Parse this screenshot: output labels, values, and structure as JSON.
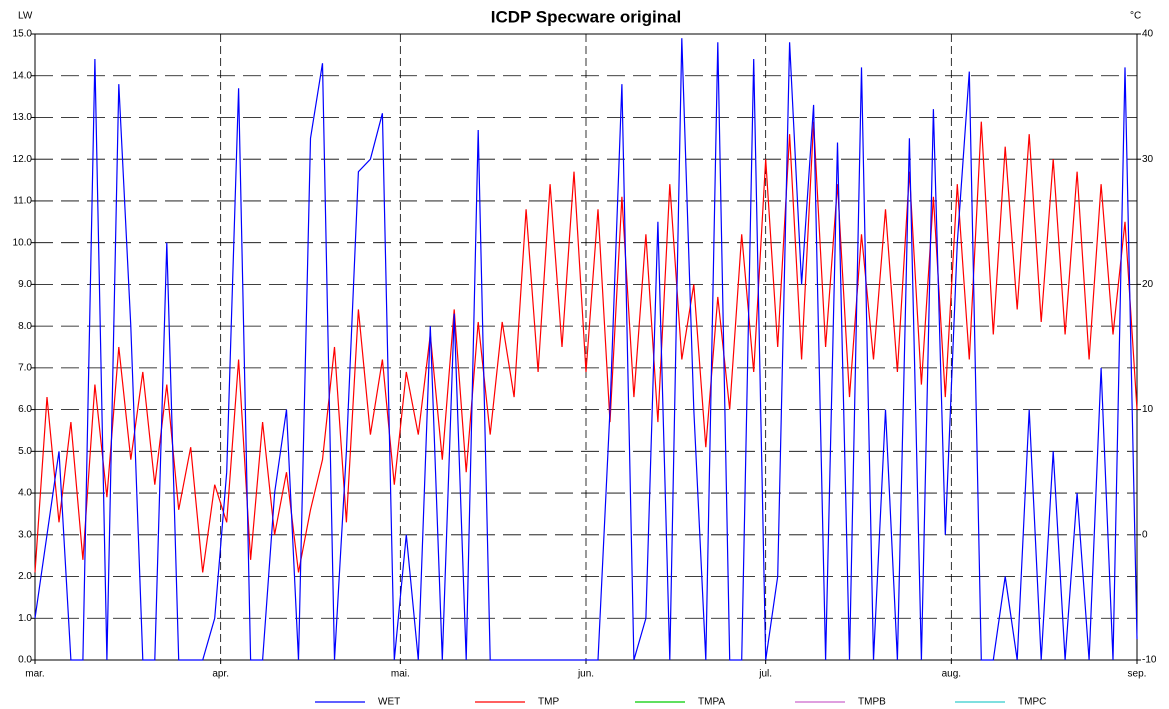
{
  "chart_data": {
    "type": "line",
    "title": "ICDP Specware original",
    "ylabel": "LW",
    "y2label": "°C",
    "x": [
      0,
      2,
      4,
      6,
      8,
      10,
      12,
      14,
      16,
      18,
      20,
      22,
      24,
      26,
      28,
      30,
      32,
      34,
      36,
      38,
      40,
      42,
      44,
      46,
      48,
      50,
      52,
      54,
      56,
      58,
      60,
      62,
      64,
      66,
      68,
      70,
      72,
      74,
      76,
      78,
      80,
      82,
      84,
      86,
      88,
      90,
      92,
      94,
      96,
      98,
      100,
      102,
      104,
      106,
      108,
      110,
      112,
      114,
      116,
      118,
      120,
      122,
      124,
      126,
      128,
      130,
      132,
      134,
      136,
      138,
      140,
      142,
      144,
      146,
      148,
      150,
      152,
      154,
      156,
      158,
      160,
      162,
      164,
      166,
      168,
      170,
      172,
      174,
      176,
      178,
      180,
      182,
      184
    ],
    "xlim": [
      0,
      184
    ],
    "xticks": [
      {
        "value": 0,
        "label": "mar."
      },
      {
        "value": 31,
        "label": "apr."
      },
      {
        "value": 61,
        "label": "mai."
      },
      {
        "value": 92,
        "label": "jun."
      },
      {
        "value": 122,
        "label": "jul."
      },
      {
        "value": 153,
        "label": "aug."
      },
      {
        "value": 184,
        "label": "sep."
      }
    ],
    "ylim": [
      0,
      15
    ],
    "yticks": [
      {
        "value": 0,
        "label": "0.0"
      },
      {
        "value": 1,
        "label": "1.0"
      },
      {
        "value": 2,
        "label": "2.0"
      },
      {
        "value": 3,
        "label": "3.0"
      },
      {
        "value": 4,
        "label": "4.0"
      },
      {
        "value": 5,
        "label": "5.0"
      },
      {
        "value": 6,
        "label": "6.0"
      },
      {
        "value": 7,
        "label": "7.0"
      },
      {
        "value": 8,
        "label": "8.0"
      },
      {
        "value": 9,
        "label": "9.0"
      },
      {
        "value": 10,
        "label": "10.0"
      },
      {
        "value": 11,
        "label": "11.0"
      },
      {
        "value": 12,
        "label": "12.0"
      },
      {
        "value": 13,
        "label": "13.0"
      },
      {
        "value": 14,
        "label": "14.0"
      },
      {
        "value": 15,
        "label": "15.0"
      }
    ],
    "y2lim": [
      -10,
      40
    ],
    "y2ticks": [
      -10,
      0,
      10,
      20,
      30,
      40
    ],
    "grid": true,
    "series": [
      {
        "name": "WET",
        "color": "#0000ff",
        "values": [
          1,
          3,
          5,
          0,
          0,
          14.4,
          0,
          13.8,
          8,
          0,
          0,
          10,
          0,
          0,
          0,
          1,
          4.5,
          13.7,
          0,
          0,
          4,
          6,
          0,
          12.5,
          14.3,
          0,
          5,
          11.7,
          12,
          13.1,
          0,
          3,
          0,
          8,
          0,
          8.3,
          0,
          12.7,
          0,
          0,
          0,
          0,
          0,
          0,
          0,
          0,
          0,
          0,
          6,
          13.8,
          0,
          1,
          10.5,
          0,
          14.9,
          6,
          0,
          14.8,
          0,
          0,
          14.4,
          0,
          2,
          14.8,
          9,
          13.3,
          0,
          12.4,
          0,
          14.2,
          0,
          6,
          0,
          12.5,
          0,
          13.2,
          3,
          10,
          14.1,
          0,
          0,
          2,
          0,
          6,
          0,
          5,
          0,
          4,
          0,
          7,
          0,
          14.2,
          0.5
        ]
      },
      {
        "name": "TMP",
        "color": "#ff0000",
        "axis": "y2",
        "values": [
          -3,
          11,
          1,
          9,
          -2,
          12,
          3,
          15,
          6,
          13,
          4,
          12,
          2,
          7,
          -3,
          4,
          1,
          14,
          -2,
          9,
          0,
          5,
          -3,
          2,
          6,
          15,
          1,
          18,
          8,
          14,
          4,
          13,
          8,
          16,
          6,
          18,
          5,
          17,
          8,
          17,
          11,
          26,
          13,
          28,
          15,
          29,
          13,
          26,
          9,
          27,
          11,
          24,
          9,
          28,
          14,
          20,
          7,
          19,
          10,
          24,
          13,
          30,
          15,
          32,
          14,
          33,
          15,
          28,
          11,
          24,
          14,
          26,
          13,
          29,
          12,
          27,
          11,
          28,
          14,
          33,
          16,
          31,
          18,
          32,
          17,
          30,
          16,
          29,
          14,
          28,
          16,
          25,
          10
        ]
      },
      {
        "name": "TMPA",
        "color": "#00cc00",
        "values": [
          null,
          null,
          null,
          null,
          null,
          null,
          null,
          null,
          null,
          null,
          null,
          null,
          null,
          null,
          null,
          null,
          null,
          null,
          null,
          null,
          null,
          null,
          null,
          null,
          null,
          null,
          null,
          null,
          null,
          null,
          null,
          null,
          null,
          null,
          null,
          null,
          null,
          null,
          null,
          null,
          null,
          null,
          null,
          null,
          null,
          null,
          null,
          null,
          null,
          null,
          null,
          null,
          null,
          null,
          null,
          null,
          null,
          null,
          null,
          null,
          null,
          null,
          null,
          null,
          null,
          null,
          null,
          null,
          null,
          null,
          null,
          null,
          null,
          null,
          null,
          null,
          null,
          null,
          null,
          null,
          null,
          null,
          null,
          null,
          null,
          null,
          null,
          null,
          null,
          null,
          null,
          null,
          null
        ]
      },
      {
        "name": "TMPB",
        "color": "#cc66cc",
        "values": [
          null,
          null,
          null,
          null,
          null,
          null,
          null,
          null,
          null,
          null,
          null,
          null,
          null,
          null,
          null,
          null,
          null,
          null,
          null,
          null,
          null,
          null,
          null,
          null,
          null,
          null,
          null,
          null,
          null,
          null,
          null,
          null,
          null,
          null,
          null,
          null,
          null,
          null,
          null,
          null,
          null,
          null,
          null,
          null,
          null,
          null,
          null,
          null,
          null,
          null,
          null,
          null,
          null,
          null,
          null,
          null,
          null,
          null,
          null,
          null,
          null,
          null,
          null,
          null,
          null,
          null,
          null,
          null,
          null,
          null,
          null,
          null,
          null,
          null,
          null,
          null,
          null,
          null,
          null,
          null,
          null,
          null,
          null,
          null,
          null,
          null,
          null,
          null,
          null,
          null,
          null,
          null,
          null
        ]
      },
      {
        "name": "TMPC",
        "color": "#33cccc",
        "values": [
          null,
          null,
          null,
          null,
          null,
          null,
          null,
          null,
          null,
          null,
          null,
          null,
          null,
          null,
          null,
          null,
          null,
          null,
          null,
          null,
          null,
          null,
          null,
          null,
          null,
          null,
          null,
          null,
          null,
          null,
          null,
          null,
          null,
          null,
          null,
          null,
          null,
          null,
          null,
          null,
          null,
          null,
          null,
          null,
          null,
          null,
          null,
          null,
          null,
          null,
          null,
          null,
          null,
          null,
          null,
          null,
          null,
          null,
          null,
          null,
          null,
          null,
          null,
          null,
          null,
          null,
          null,
          null,
          null,
          null,
          null,
          null,
          null,
          null,
          null,
          null,
          null,
          null,
          null,
          null,
          null,
          null,
          null,
          null,
          null,
          null,
          null,
          null,
          null,
          null,
          null,
          null,
          null
        ]
      }
    ]
  }
}
